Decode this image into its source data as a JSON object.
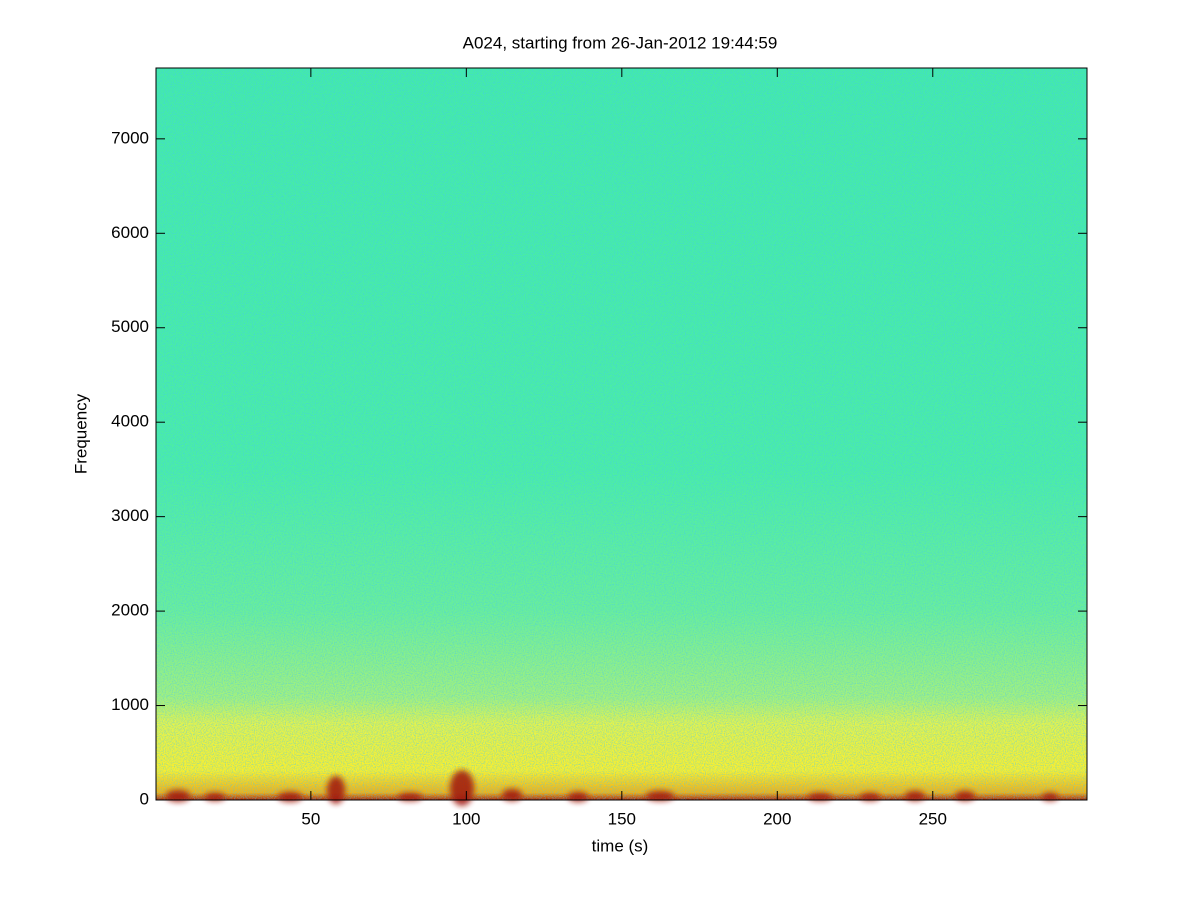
{
  "chart_data": {
    "type": "spectrogram",
    "title": "A024, starting from 26-Jan-2012 19:44:59",
    "x_label": "time (s)",
    "y_label": "Frequency",
    "xlim": [
      0.2,
      299.6
    ],
    "xticks": [
      50,
      100,
      150,
      200,
      250
    ],
    "ylim": [
      0,
      7750
    ],
    "yticks": [
      0,
      1000,
      2000,
      3000,
      4000,
      5000,
      6000,
      7000
    ],
    "colormap": "jet"
  }
}
